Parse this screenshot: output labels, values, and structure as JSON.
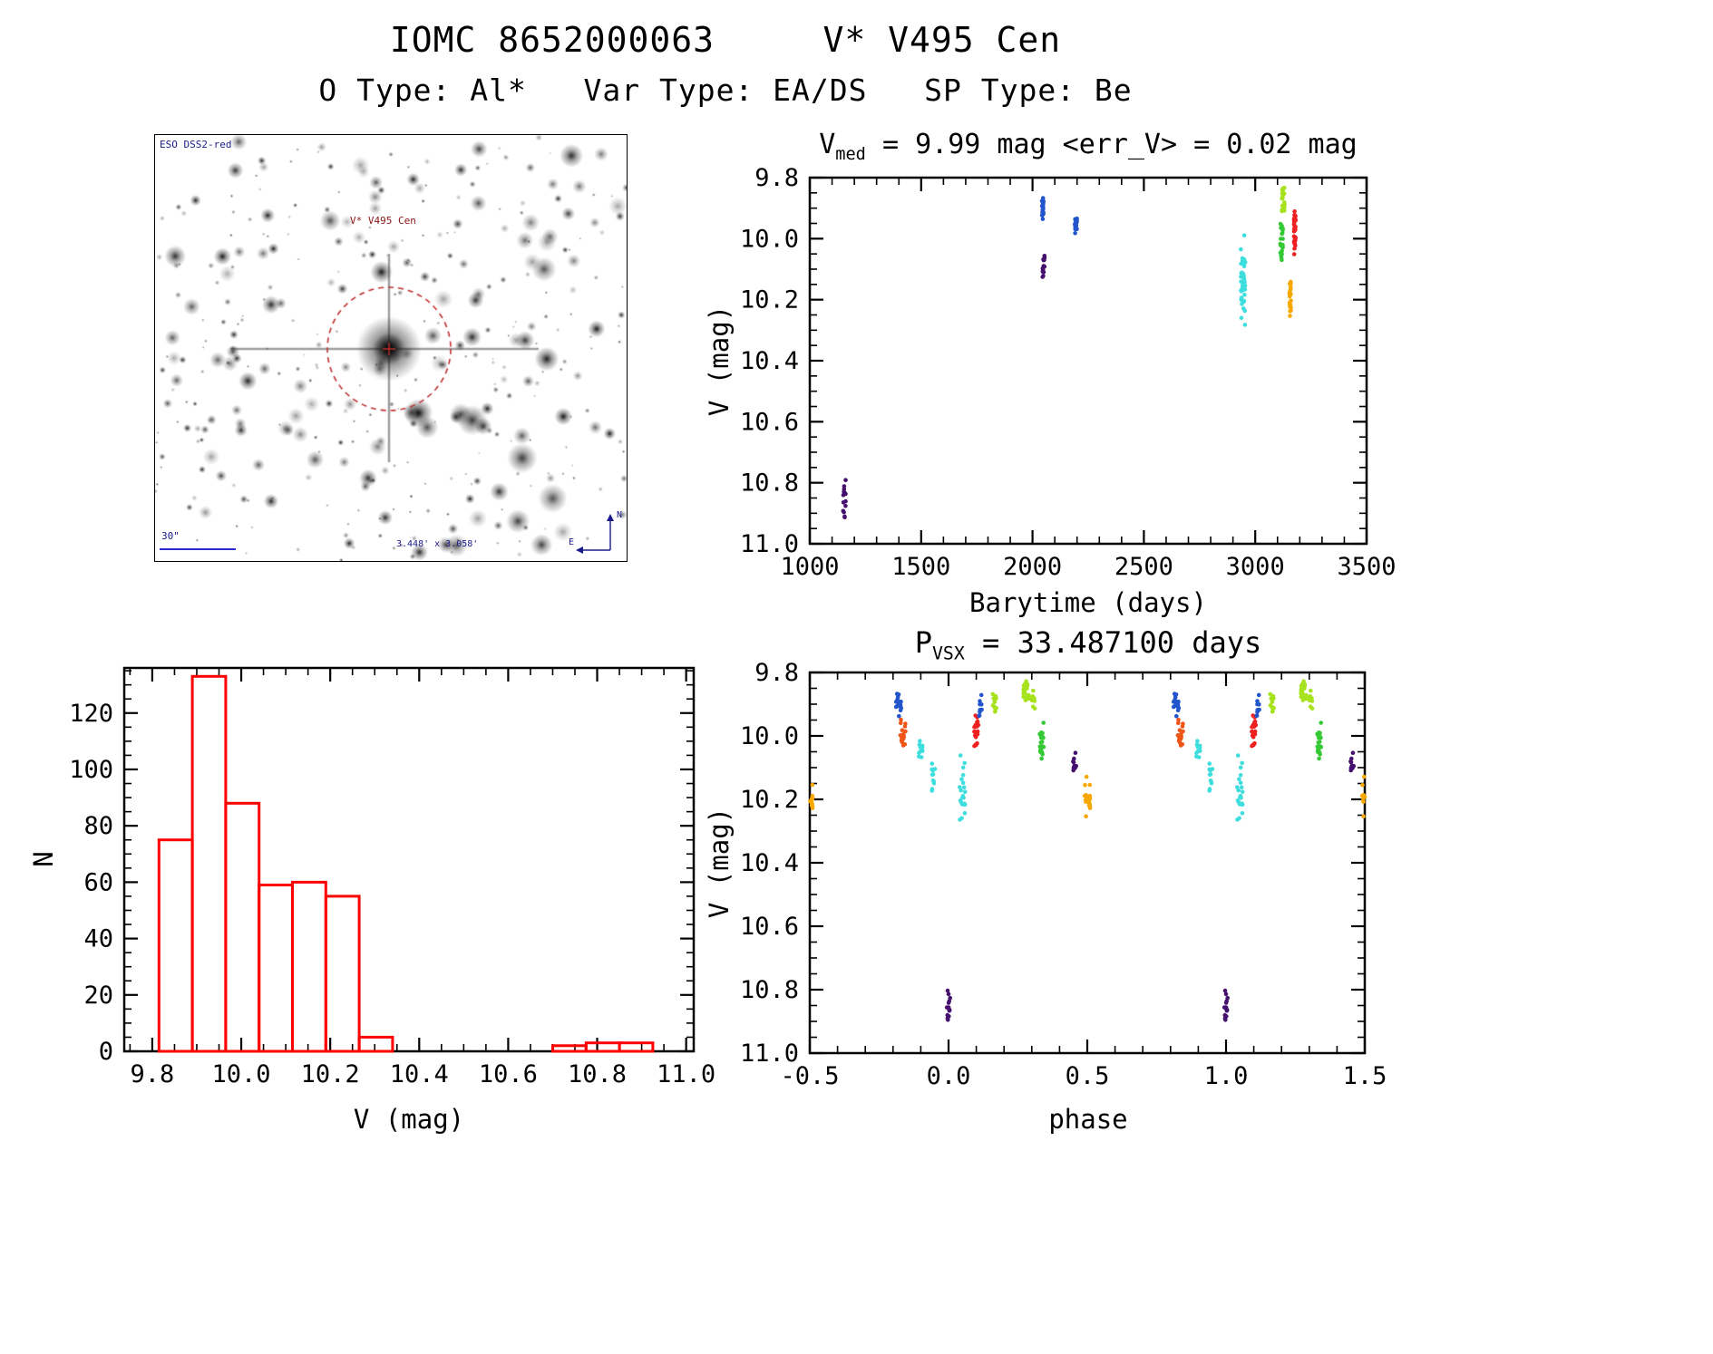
{
  "header": {
    "title": "IOMC 8652000063     V* V495 Cen",
    "subtitle": "O Type: Al*   Var Type: EA/DS   SP Type: Be"
  },
  "finder": {
    "survey": "ESO DSS2-red",
    "star_label": "V* V495 Cen",
    "scale_label": "30\"",
    "fov_label": "3.448' x 3.058'",
    "compass_north": "N",
    "compass_east": "E"
  },
  "lightcurve": {
    "title_main": "V",
    "title_sub": "med",
    "title_rest": " = 9.99 mag <err_V> = 0.02 mag",
    "xlabel": "Barytime (days)",
    "ylabel": "V (mag)"
  },
  "histogram": {
    "xlabel": "V (mag)",
    "ylabel": "N"
  },
  "phase": {
    "title_main": "P",
    "title_sub": "VSX",
    "title_rest": " = 33.487100 days",
    "xlabel": "phase",
    "ylabel": "V (mag)"
  },
  "palette": {
    "purple": "#45106e",
    "blue": "#2255cc",
    "cyan": "#3fdede",
    "chartreuse": "#a6e31e",
    "green": "#35c935",
    "red": "#ee2020",
    "orange_red": "#f05518",
    "orange": "#f7a800",
    "hist": "#ff0000",
    "axis": "#000000"
  },
  "chart_data": [
    {
      "id": "lightcurve",
      "type": "scatter",
      "title": "V_med = 9.99 mag <err_V> = 0.02 mag",
      "xlabel": "Barytime (days)",
      "ylabel": "V (mag)",
      "xlim": [
        1000,
        3500
      ],
      "ylim": [
        9.8,
        11.0
      ],
      "y_inverted": true,
      "xticks": [
        1000,
        1500,
        2000,
        2500,
        3000,
        3500
      ],
      "yticks": [
        9.8,
        10.0,
        10.2,
        10.4,
        10.6,
        10.8,
        11.0
      ],
      "x_minor_step": 100,
      "y_minor_step": 0.05,
      "x_decimals": 0,
      "y_decimals": 1,
      "clusters": [
        {
          "color": "purple",
          "x": 1155,
          "x_spread": 12,
          "y_min": 10.78,
          "y_max": 10.92,
          "n": 14
        },
        {
          "color": "blue",
          "x": 2045,
          "x_spread": 10,
          "y_min": 9.86,
          "y_max": 9.94,
          "n": 20
        },
        {
          "color": "purple",
          "x": 2050,
          "x_spread": 10,
          "y_min": 10.03,
          "y_max": 10.15,
          "n": 14
        },
        {
          "color": "blue",
          "x": 2195,
          "x_spread": 10,
          "y_min": 9.92,
          "y_max": 9.99,
          "n": 16
        },
        {
          "color": "cyan",
          "x": 2945,
          "x_spread": 20,
          "y_min": 9.97,
          "y_max": 10.31,
          "n": 45
        },
        {
          "color": "chartreuse",
          "x": 3125,
          "x_spread": 14,
          "y_min": 9.82,
          "y_max": 9.93,
          "n": 25
        },
        {
          "color": "green",
          "x": 3118,
          "x_spread": 12,
          "y_min": 9.94,
          "y_max": 10.1,
          "n": 28
        },
        {
          "color": "red",
          "x": 3178,
          "x_spread": 8,
          "y_min": 9.89,
          "y_max": 10.06,
          "n": 40
        },
        {
          "color": "orange",
          "x": 3158,
          "x_spread": 8,
          "y_min": 10.13,
          "y_max": 10.27,
          "n": 22
        }
      ]
    },
    {
      "id": "histogram",
      "type": "bar",
      "xlabel": "V (mag)",
      "ylabel": "N",
      "xlim": [
        9.737,
        11.017
      ],
      "ylim": [
        0,
        136
      ],
      "y_inverted": false,
      "xticks": [
        9.8,
        10.0,
        10.2,
        10.4,
        10.6,
        10.8,
        11.0
      ],
      "yticks": [
        0,
        20,
        40,
        60,
        80,
        100,
        120
      ],
      "x_minor_step": 0.05,
      "y_minor_step": 5,
      "x_decimals": 1,
      "y_decimals": 0,
      "bin_width": 0.075,
      "bins": [
        {
          "x0": 9.815,
          "count": 75
        },
        {
          "x0": 9.89,
          "count": 133
        },
        {
          "x0": 9.965,
          "count": 88
        },
        {
          "x0": 10.04,
          "count": 59
        },
        {
          "x0": 10.115,
          "count": 60
        },
        {
          "x0": 10.19,
          "count": 55
        },
        {
          "x0": 10.265,
          "count": 5
        },
        {
          "x0": 10.7,
          "count": 2
        },
        {
          "x0": 10.775,
          "count": 3
        },
        {
          "x0": 10.85,
          "count": 3
        }
      ]
    },
    {
      "id": "phase",
      "type": "scatter",
      "title": "P_VSX = 33.487100 days",
      "xlabel": "phase",
      "ylabel": "V (mag)",
      "period_days": 33.4871,
      "phase_repeat": true,
      "xlim": [
        -0.5,
        1.5
      ],
      "ylim": [
        9.8,
        11.0
      ],
      "y_inverted": true,
      "xticks": [
        -0.5,
        0.0,
        0.5,
        1.0,
        1.5
      ],
      "yticks": [
        9.8,
        10.0,
        10.2,
        10.4,
        10.6,
        10.8,
        11.0
      ],
      "x_minor_step": 0.1,
      "y_minor_step": 0.05,
      "x_decimals": 1,
      "y_decimals": 1,
      "clusters": [
        {
          "color": "purple",
          "x": 0.0,
          "x_spread": 0.012,
          "y_min": 10.78,
          "y_max": 10.92,
          "n": 14
        },
        {
          "color": "blue",
          "x": 0.82,
          "x_spread": 0.02,
          "y_min": 9.85,
          "y_max": 9.95,
          "n": 18
        },
        {
          "color": "orange_red",
          "x": 0.835,
          "x_spread": 0.02,
          "y_min": 9.94,
          "y_max": 10.05,
          "n": 18
        },
        {
          "color": "cyan",
          "x": 0.9,
          "x_spread": 0.015,
          "y_min": 10.0,
          "y_max": 10.08,
          "n": 10
        },
        {
          "color": "cyan",
          "x": 0.945,
          "x_spread": 0.015,
          "y_min": 10.05,
          "y_max": 10.18,
          "n": 12
        },
        {
          "color": "cyan",
          "x": 0.05,
          "x_spread": 0.02,
          "y_min": 10.05,
          "y_max": 10.3,
          "n": 22
        },
        {
          "color": "red",
          "x": 0.1,
          "x_spread": 0.015,
          "y_min": 9.92,
          "y_max": 10.05,
          "n": 22
        },
        {
          "color": "blue",
          "x": 0.115,
          "x_spread": 0.012,
          "y_min": 9.86,
          "y_max": 9.95,
          "n": 10
        },
        {
          "color": "chartreuse",
          "x": 0.165,
          "x_spread": 0.015,
          "y_min": 9.84,
          "y_max": 9.97,
          "n": 12
        },
        {
          "color": "chartreuse",
          "x": 0.28,
          "x_spread": 0.02,
          "y_min": 9.82,
          "y_max": 9.9,
          "n": 20
        },
        {
          "color": "chartreuse",
          "x": 0.305,
          "x_spread": 0.012,
          "y_min": 9.84,
          "y_max": 9.92,
          "n": 10
        },
        {
          "color": "green",
          "x": 0.335,
          "x_spread": 0.015,
          "y_min": 9.94,
          "y_max": 10.1,
          "n": 22
        },
        {
          "color": "purple",
          "x": 0.455,
          "x_spread": 0.012,
          "y_min": 10.04,
          "y_max": 10.13,
          "n": 10
        },
        {
          "color": "orange",
          "x": 0.5,
          "x_spread": 0.02,
          "y_min": 10.12,
          "y_max": 10.27,
          "n": 20
        }
      ]
    }
  ]
}
